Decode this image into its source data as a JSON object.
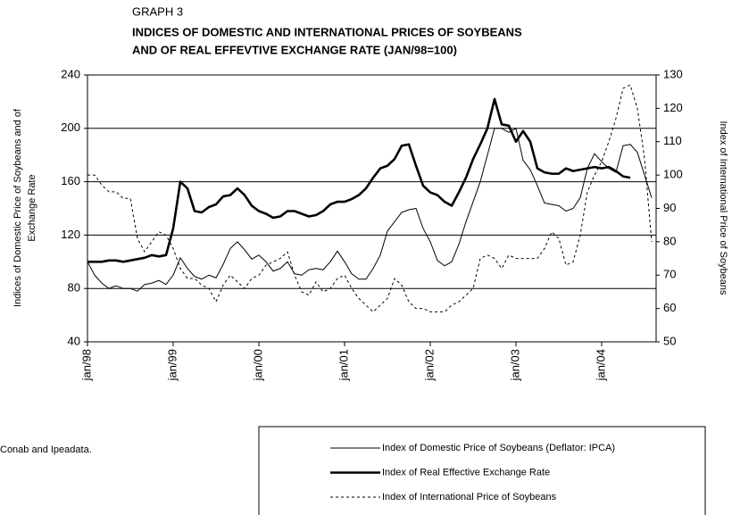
{
  "chart_data": {
    "type": "line",
    "graph_label": "GRAPH 3",
    "title": [
      "INDICES OF DOMESTIC AND INTERNATIONAL PRICES OF SOYBEANS",
      "AND OF REAL EFFEVTIVE EXCHANGE RATE (JAN/98=100)"
    ],
    "y_label": [
      "Indices of Domestic Price of Soybeans and of",
      "Exchange Rate"
    ],
    "y2_label": "Index of International Price of Soybeans",
    "source": "Conab and Ipeadata.",
    "categories": [
      "jan/98",
      null,
      null,
      null,
      null,
      null,
      null,
      null,
      null,
      null,
      null,
      null,
      "jan/99",
      null,
      null,
      null,
      null,
      null,
      null,
      null,
      null,
      null,
      null,
      null,
      "jan/00",
      null,
      null,
      null,
      null,
      null,
      null,
      null,
      null,
      null,
      null,
      null,
      "jan/01",
      null,
      null,
      null,
      null,
      null,
      null,
      null,
      null,
      null,
      null,
      null,
      "jan/02",
      null,
      null,
      null,
      null,
      null,
      null,
      null,
      null,
      null,
      null,
      null,
      "jan/03",
      null,
      null,
      null,
      null,
      null,
      null,
      null,
      null,
      null,
      null,
      null,
      "jan/04",
      null,
      null,
      null,
      null,
      null,
      null,
      null
    ],
    "ylim": [
      40,
      240
    ],
    "yticks": [
      40,
      80,
      120,
      160,
      200,
      240
    ],
    "y2lim": [
      50,
      130
    ],
    "y2ticks": [
      50,
      60,
      70,
      80,
      90,
      100,
      110,
      120,
      130
    ],
    "grid": true,
    "series": [
      {
        "name": "Index of Domestic Price of Soybeans (Deflator: IPCA)",
        "color": "#000000",
        "style": "solid",
        "width": 1,
        "values": [
          100,
          90,
          84,
          80,
          82,
          80,
          80,
          78,
          83,
          84,
          86,
          83,
          90,
          103,
          95,
          89,
          87,
          90,
          88,
          98,
          110,
          115,
          109,
          102,
          105,
          100,
          93,
          95,
          100,
          91,
          90,
          94,
          95,
          94,
          100,
          108,
          100,
          91,
          87,
          87,
          95,
          105,
          123,
          130,
          137,
          139,
          140,
          125,
          115,
          101,
          97,
          100,
          113,
          130,
          145,
          160,
          180,
          200,
          200,
          197,
          200,
          176,
          169,
          157,
          144,
          143,
          142,
          138,
          140,
          148,
          170,
          181,
          175,
          170,
          167,
          187,
          188,
          182,
          165,
          148
        ]
      },
      {
        "name": "Index of Real Effective Exchange Rate",
        "color": "#000000",
        "style": "solid",
        "width": 2.6,
        "values": [
          100,
          100,
          100,
          101,
          101,
          100,
          101,
          102,
          103,
          105,
          104,
          105,
          125,
          160,
          155,
          138,
          137,
          141,
          143,
          149,
          150,
          155,
          150,
          142,
          138,
          136,
          133,
          134,
          138,
          138,
          136,
          134,
          135,
          138,
          143,
          145,
          145,
          147,
          150,
          155,
          163,
          170,
          172,
          177,
          187,
          188,
          172,
          157,
          152,
          150,
          145,
          142,
          152,
          163,
          177,
          188,
          200,
          222,
          203,
          202,
          190,
          198,
          190,
          170,
          167,
          166,
          166,
          170,
          168,
          169,
          170,
          171,
          170,
          171,
          168,
          164,
          163,
          null,
          null,
          null
        ]
      },
      {
        "name": "Index of International Price of Soybeans",
        "color": "#000000",
        "style": "dashed",
        "width": 1,
        "axis": "y2",
        "values": [
          100,
          100,
          97,
          95,
          95,
          93,
          93,
          81,
          77,
          80,
          83,
          82,
          78,
          72,
          69,
          69,
          67,
          66,
          62,
          67,
          70,
          68,
          66,
          69,
          70,
          73,
          74,
          75,
          77,
          70,
          65,
          64,
          68,
          65,
          66,
          69,
          70,
          66,
          63,
          61,
          59,
          61,
          63,
          69,
          67,
          62,
          60,
          60,
          59,
          59,
          59,
          61,
          62,
          64,
          66,
          75,
          76,
          75,
          72,
          76,
          75,
          75,
          75,
          75,
          78,
          83,
          81,
          73,
          74,
          82,
          95,
          100,
          104,
          110,
          117,
          126,
          127,
          120,
          105,
          80
        ]
      }
    ]
  }
}
